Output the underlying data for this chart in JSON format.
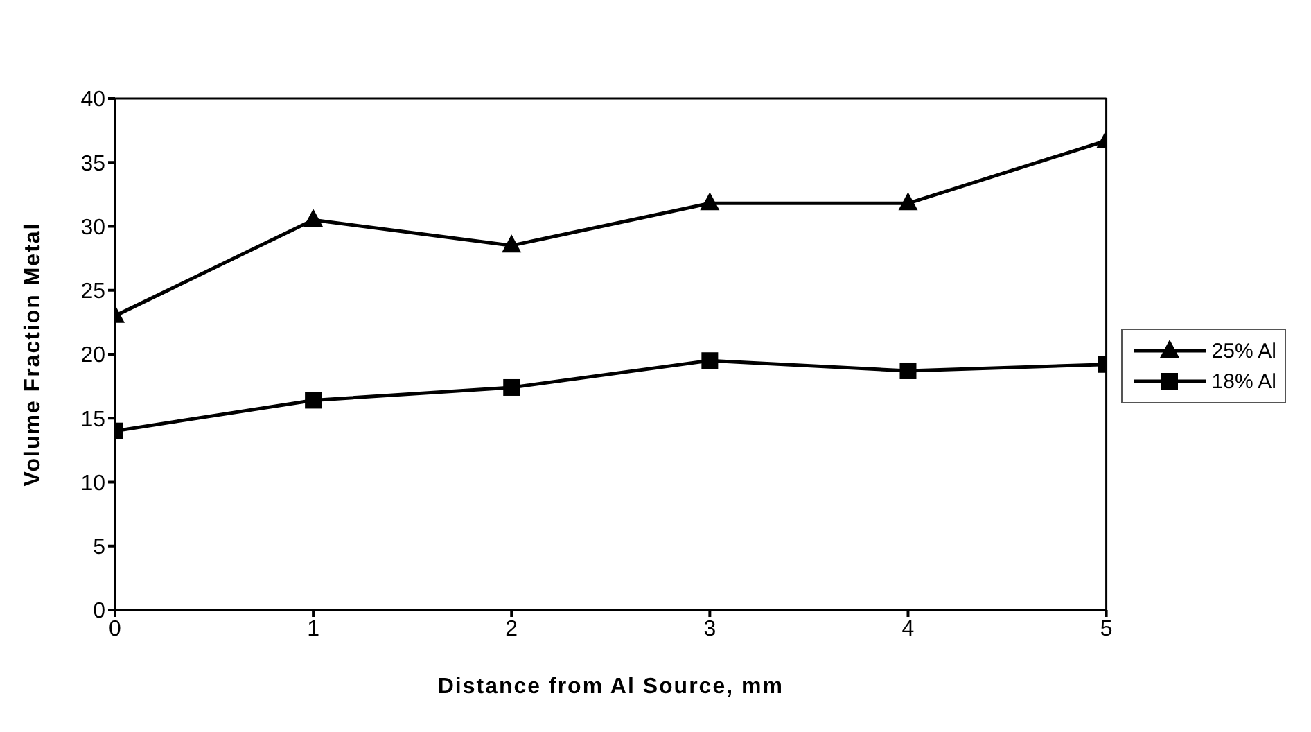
{
  "chart_data": {
    "type": "line",
    "xlabel": "Distance from Al Source, mm",
    "ylabel": "Volume  Fraction  Metal",
    "x": [
      0,
      1,
      2,
      3,
      4,
      5
    ],
    "series": [
      {
        "name": "25% Al",
        "color": "#000000",
        "marker": "triangle",
        "values": [
          23.0,
          30.5,
          28.5,
          31.8,
          31.8,
          36.7
        ]
      },
      {
        "name": "18% Al",
        "color": "#000000",
        "marker": "square",
        "values": [
          14.0,
          16.4,
          17.4,
          19.5,
          18.7,
          19.2
        ]
      }
    ],
    "xlim": [
      0,
      5
    ],
    "xticks": [
      0,
      1,
      2,
      3,
      4,
      5
    ],
    "ylim": [
      0,
      40
    ],
    "yticks": [
      0,
      5,
      10,
      15,
      20,
      25,
      30,
      35,
      40
    ],
    "grid": false,
    "legend": "right",
    "line_style": "solid"
  }
}
